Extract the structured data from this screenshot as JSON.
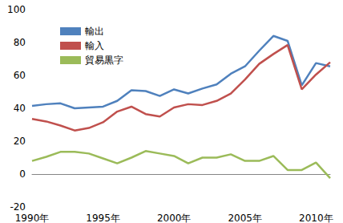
{
  "chart_data": {
    "type": "line",
    "categories": [
      "1990年",
      null,
      null,
      null,
      null,
      "1995年",
      null,
      null,
      null,
      null,
      "2000年",
      null,
      null,
      null,
      null,
      "2005年",
      null,
      null,
      null,
      null,
      "2010年",
      null
    ],
    "series": [
      {
        "name": "輸出",
        "color": "#4f81bd",
        "values": [
          41.5,
          42.5,
          43,
          40,
          40.5,
          41,
          44.5,
          51,
          50.5,
          47.5,
          51.5,
          49,
          52,
          54.5,
          61,
          65.5,
          75,
          84,
          81,
          54,
          67.5,
          65.5
        ]
      },
      {
        "name": "輸入",
        "color": "#c0504d",
        "values": [
          33.5,
          32,
          29.5,
          26.5,
          28,
          31.5,
          38,
          41,
          36.5,
          35,
          40.5,
          42.5,
          42,
          44.5,
          49,
          57.5,
          67,
          73,
          78.5,
          51.5,
          60.5,
          68
        ]
      },
      {
        "name": "貿易黒字",
        "color": "#9bbb59",
        "values": [
          8,
          10.5,
          13.5,
          13.5,
          12.5,
          9.5,
          6.5,
          10,
          14,
          12.5,
          11,
          6.5,
          10,
          10,
          12,
          8,
          8,
          11,
          2.5,
          2.5,
          7,
          -2.5
        ]
      }
    ],
    "ylim": [
      -20,
      100
    ],
    "yticks": [
      -20,
      0,
      20,
      40,
      60,
      80,
      100
    ],
    "grid": false,
    "legend": "upper left"
  }
}
